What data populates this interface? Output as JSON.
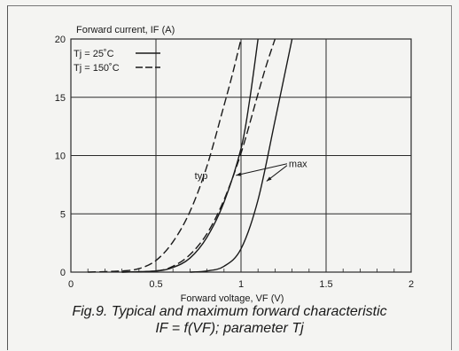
{
  "chart_data": {
    "type": "line",
    "title": "",
    "ylabel": "Forward current, IF (A)",
    "xlabel": "Forward voltage, VF (V)",
    "xlim": [
      0,
      2
    ],
    "ylim": [
      0,
      20
    ],
    "x_ticks": [
      "0",
      "0.5",
      "1",
      "1.5",
      "2"
    ],
    "y_ticks": [
      "0",
      "5",
      "10",
      "15",
      "20"
    ],
    "grid": true,
    "legend": [
      {
        "label": "Tj = 25˚C",
        "style": "solid"
      },
      {
        "label": "Tj = 150˚C",
        "style": "dashed"
      }
    ],
    "annotations": [
      {
        "text": "typ",
        "x": 0.79,
        "y": 8.3
      },
      {
        "text": "max",
        "x": 1.26,
        "y": 9.3
      }
    ],
    "series": [
      {
        "curve": "typ",
        "tj": "25",
        "style": "solid",
        "x": [
          0.3,
          0.5,
          0.6,
          0.7,
          0.8,
          0.9,
          1.0,
          1.05,
          1.1
        ],
        "y": [
          0.0,
          0.1,
          0.4,
          1.2,
          3.0,
          6.0,
          10.6,
          14.7,
          20.0
        ]
      },
      {
        "curve": "typ",
        "tj": "150",
        "style": "dashed",
        "x": [
          0.1,
          0.3,
          0.4,
          0.5,
          0.6,
          0.7,
          0.8,
          0.9,
          0.95,
          1.0
        ],
        "y": [
          0.0,
          0.1,
          0.3,
          1.0,
          2.6,
          5.2,
          9.1,
          14.3,
          17.0,
          20.0
        ]
      },
      {
        "curve": "max",
        "tj": "25",
        "style": "solid",
        "x": [
          0.7,
          0.8,
          0.9,
          1.0,
          1.1,
          1.2,
          1.3
        ],
        "y": [
          0.0,
          0.1,
          0.5,
          2.0,
          6.2,
          13.0,
          20.0
        ]
      },
      {
        "curve": "max",
        "tj": "150",
        "style": "dashed",
        "x": [
          0.3,
          0.5,
          0.6,
          0.7,
          0.8,
          0.9,
          1.0,
          1.1,
          1.15,
          1.2
        ],
        "y": [
          0.0,
          0.1,
          0.5,
          1.5,
          3.3,
          6.2,
          10.2,
          15.3,
          17.8,
          20.0
        ]
      }
    ]
  },
  "caption": {
    "line1": "Fig.9.  Typical and maximum forward characteristic",
    "line2": "IF = f(VF); parameter Tj"
  },
  "colors": {
    "ink": "#1a1a1a",
    "grid": "#2a2a2a",
    "background": "#f4f4f2"
  }
}
